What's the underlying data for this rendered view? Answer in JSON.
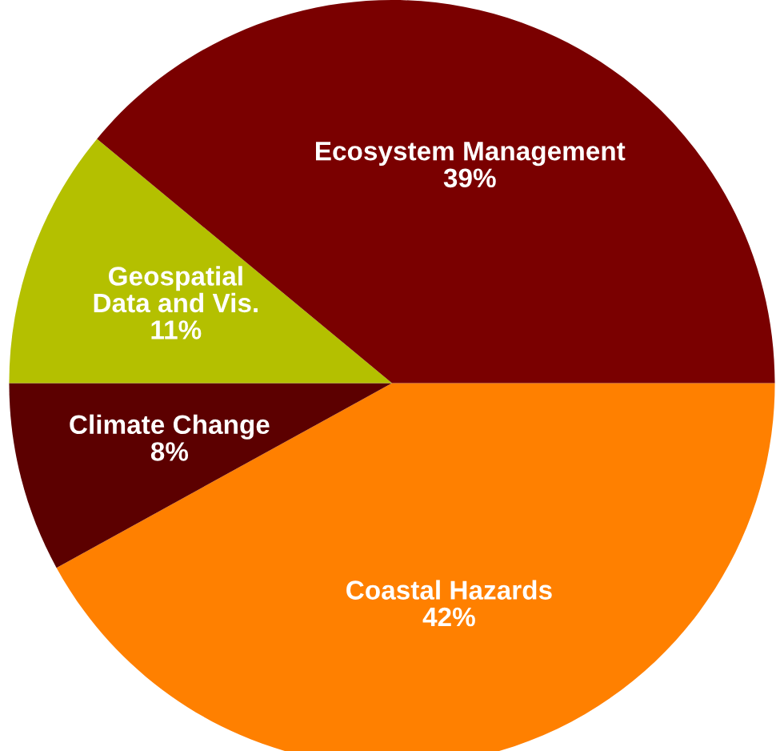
{
  "chart_data": {
    "type": "pie",
    "categories": [
      "Coastal Hazards",
      "Climate Change",
      "Geospatial\nData and Vis.",
      "Ecosystem Management"
    ],
    "values": [
      42,
      8,
      11,
      39
    ],
    "value_labels": [
      "42%",
      "8%",
      "11%",
      "39%"
    ],
    "colors": [
      "#ff8000",
      "#5c0000",
      "#b4c000",
      "#7a0000"
    ],
    "legend": false
  }
}
